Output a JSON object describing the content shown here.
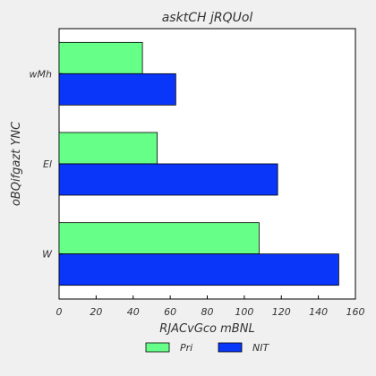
{
  "chart_data": {
    "type": "bar",
    "orientation": "horizontal",
    "title": "asktCH  jRQUol",
    "xlabel": "RJACvGco mBNL",
    "ylabel": "oBQifgazt YNC",
    "categories": [
      "W",
      "El",
      "wMh"
    ],
    "series": [
      {
        "name": "Pri",
        "values": [
          108,
          53,
          45
        ],
        "color": "#66ff88"
      },
      {
        "name": "NIT",
        "values": [
          151,
          118,
          63
        ],
        "color": "#0a36fa"
      }
    ],
    "xlim": [
      0,
      160
    ],
    "xticks": [
      0,
      20,
      40,
      60,
      80,
      100,
      120,
      140,
      160
    ],
    "grid": false,
    "legend_position": "bottom"
  }
}
